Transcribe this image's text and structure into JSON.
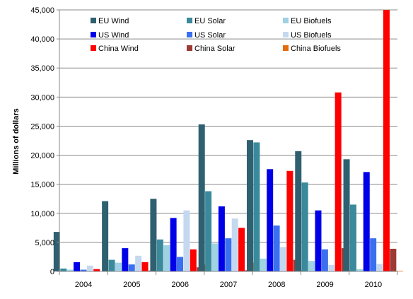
{
  "chart_data": {
    "type": "bar",
    "title": "",
    "xlabel": "",
    "ylabel": "Millions of dollars",
    "ylim": [
      0,
      45000
    ],
    "yticks": [
      0,
      5000,
      10000,
      15000,
      20000,
      25000,
      30000,
      35000,
      40000,
      45000
    ],
    "ytick_labels": [
      "0",
      "5,000",
      "10,000",
      "15,000",
      "20,000",
      "25,000",
      "30,000",
      "35,000",
      "40,000",
      "45,000"
    ],
    "grid": true,
    "legend_position": "top",
    "categories": [
      "2004",
      "2005",
      "2006",
      "2007",
      "2008",
      "2009",
      "2010"
    ],
    "series": [
      {
        "name": "EU Wind",
        "color": "#2e6070",
        "values": [
          6800,
          12100,
          12500,
          25300,
          22600,
          20700,
          19300
        ]
      },
      {
        "name": "EU Solar",
        "color": "#3a8a9c",
        "values": [
          500,
          2000,
          5500,
          13800,
          22200,
          15300,
          11500
        ]
      },
      {
        "name": "EU Biofuels",
        "color": "#9fd2e2",
        "values": [
          300,
          1500,
          4500,
          4800,
          2200,
          1800,
          400
        ]
      },
      {
        "name": "US Wind",
        "color": "#0000e8",
        "values": [
          1600,
          4000,
          9200,
          11200,
          17600,
          10500,
          17100
        ]
      },
      {
        "name": "US Solar",
        "color": "#3a6ff0",
        "values": [
          300,
          1200,
          2500,
          5700,
          7900,
          3800,
          5700
        ]
      },
      {
        "name": "US Biofuels",
        "color": "#c4d9f0",
        "values": [
          1000,
          2700,
          10500,
          9100,
          4200,
          1100,
          1300
        ]
      },
      {
        "name": "China Wind",
        "color": "#ff0000",
        "values": [
          400,
          1600,
          3800,
          7500,
          17300,
          30800,
          45000
        ]
      },
      {
        "name": "China Solar",
        "color": "#9c3a34",
        "values": [
          50,
          150,
          700,
          200,
          2000,
          4000,
          3900
        ]
      },
      {
        "name": "China Biofuels",
        "color": "#e46c0a",
        "values": [
          100,
          100,
          1200,
          1500,
          200,
          100,
          100
        ]
      }
    ]
  }
}
